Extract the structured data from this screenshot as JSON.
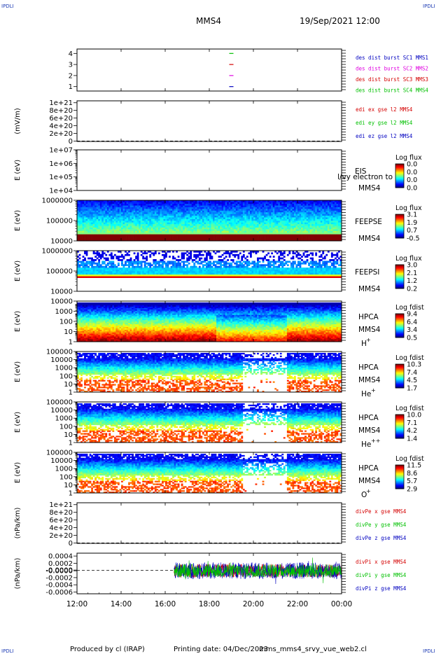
{
  "header": {
    "corner_tl": "IPDLI",
    "corner_tr": "IPDLI",
    "corner_bl": "IPDLI",
    "corner_br": "IPDLI",
    "spacecraft": "MMS4",
    "datetime": "19/Sep/2021 12:00"
  },
  "footer": {
    "produced_by": "Produced by cl (IRAP)",
    "printing_date": "Printing date: 04/Dec/2023",
    "script_name": "mms_mms4_srvy_vue_web2.cl"
  },
  "time_axis": {
    "ticks": [
      "12:00",
      "14:00",
      "16:00",
      "18:00",
      "20:00",
      "22:00",
      "00:00"
    ],
    "start_hour": 12,
    "end_hour": 24
  },
  "colors": {
    "red": "#d40000",
    "magenta": "#e000e0",
    "green": "#00c000",
    "blue": "#0000c0"
  },
  "chart_data": [
    {
      "id": "burst",
      "type": "scatter",
      "yticks": [
        "4",
        "3",
        "2",
        "1"
      ],
      "yvalues": [
        4,
        3,
        2,
        1
      ],
      "ylim": [
        0.6,
        4.4
      ],
      "series": [
        {
          "name": "des dist burst SC1 MMS1",
          "color": "#0000c0",
          "x": [
            19.0
          ],
          "y": [
            1
          ]
        },
        {
          "name": "des dist burst SC2 MMS2",
          "color": "#e000e0",
          "x": [
            19.0
          ],
          "y": [
            2
          ]
        },
        {
          "name": "des dist burst SC3 MMS3",
          "color": "#d40000",
          "x": [
            19.0
          ],
          "y": [
            3
          ]
        },
        {
          "name": "des dist burst SC4 MMS4",
          "color": "#00c000",
          "x": [
            19.0
          ],
          "y": [
            4
          ]
        }
      ]
    },
    {
      "id": "edi",
      "type": "line",
      "ylabel": "(mV/m)",
      "yticks": [
        "1e+21",
        "8e+20",
        "6e+20",
        "4e+20",
        "2e+20",
        "0"
      ],
      "yvalues": [
        1e+21,
        8e+20,
        6e+20,
        4e+20,
        2e+20,
        0
      ],
      "ylim": [
        -1e+19,
        1.05e+21
      ],
      "zero_line": true,
      "series": [
        {
          "name": "edi ex gse l2 MMS4",
          "color": "#d40000"
        },
        {
          "name": "edi ey gse l2 MMS4",
          "color": "#00c000"
        },
        {
          "name": "edi ez gse l2 MMS4",
          "color": "#0000c0"
        }
      ]
    },
    {
      "id": "eis",
      "type": "heatmap",
      "ylabel": "E (eV)",
      "yticks": [
        "1e+07",
        "1e+06",
        "1e+05",
        "1e+04"
      ],
      "ylog": [
        4,
        7
      ],
      "instrument": "EIS",
      "spacecraft": "MMS4",
      "overlay_text": "l/vy electron to",
      "colorbar_title": "Log flux",
      "colorbar_ticks": [
        "0.0",
        "0.0",
        "0.0",
        "0.0"
      ],
      "data": "empty"
    },
    {
      "id": "feepse",
      "type": "heatmap",
      "ylabel": "E (eV)",
      "yticks": [
        "1000000",
        "100000",
        "10000"
      ],
      "ylog": [
        4,
        6
      ],
      "instrument": "FEEPSE",
      "spacecraft": "MMS4",
      "colorbar_title": "Log flux",
      "colorbar_ticks": [
        "3.1",
        "1.9",
        "0.7",
        "-0.5"
      ],
      "data_start_hour": 12.0,
      "data_end_hour": 24.0,
      "pattern": "feeps_e"
    },
    {
      "id": "feepsi",
      "type": "heatmap",
      "ylabel": "E (eV)",
      "yticks": [
        "1000000",
        "100000",
        "10000"
      ],
      "ylog": [
        4,
        6
      ],
      "instrument": "FEEPSI",
      "spacecraft": "MMS4",
      "colorbar_title": "Log flux",
      "colorbar_ticks": [
        "3.0",
        "2.1",
        "1.2",
        "0.2"
      ],
      "data_start_hour": 12.0,
      "data_end_hour": 24.0,
      "pattern": "feeps_i"
    },
    {
      "id": "hpca_h",
      "type": "heatmap",
      "ylabel": "E (eV)",
      "yticks": [
        "10000",
        "1000",
        "100",
        "10",
        "1"
      ],
      "ylog": [
        0,
        4.3
      ],
      "instrument": "HPCA",
      "spacecraft": "MMS4",
      "species": "H",
      "species_sup": "+",
      "colorbar_title": "Log fdist",
      "colorbar_ticks": [
        "9.4",
        "6.4",
        "3.4",
        "0.5"
      ],
      "data_start_hour": 12.0,
      "data_end_hour": 24.0,
      "pattern": "hpca_h"
    },
    {
      "id": "hpca_he",
      "type": "heatmap",
      "ylabel": "E (eV)",
      "yticks": [
        "100000",
        "10000",
        "1000",
        "100",
        "10",
        "1"
      ],
      "ylog": [
        0,
        5
      ],
      "instrument": "HPCA",
      "spacecraft": "MMS4",
      "species": "He",
      "species_sup": "+",
      "colorbar_title": "Log fdist",
      "colorbar_ticks": [
        "10.3",
        "7.4",
        "4.5",
        "1.7"
      ],
      "data_start_hour": 12.0,
      "data_end_hour": 24.0,
      "pattern": "hpca_he"
    },
    {
      "id": "hpca_hepp",
      "type": "heatmap",
      "ylabel": "E (eV)",
      "yticks": [
        "100000",
        "10000",
        "1000",
        "100",
        "10",
        "1"
      ],
      "ylog": [
        0,
        5
      ],
      "instrument": "HPCA",
      "spacecraft": "MMS4",
      "species": "He",
      "species_sup": "++",
      "colorbar_title": "Log fdist",
      "colorbar_ticks": [
        "10.0",
        "7.1",
        "4.2",
        "1.4"
      ],
      "data_start_hour": 12.0,
      "data_end_hour": 24.0,
      "pattern": "hpca_hepp"
    },
    {
      "id": "hpca_o",
      "type": "heatmap",
      "ylabel": "E (eV)",
      "yticks": [
        "100000",
        "10000",
        "1000",
        "100",
        "10",
        "1"
      ],
      "ylog": [
        0,
        5
      ],
      "instrument": "HPCA",
      "spacecraft": "MMS4",
      "species": "O",
      "species_sup": "+",
      "colorbar_title": "Log fdist",
      "colorbar_ticks": [
        "11.5",
        "8.6",
        "5.7",
        "2.9"
      ],
      "data_start_hour": 12.0,
      "data_end_hour": 24.0,
      "pattern": "hpca_o"
    },
    {
      "id": "divpe",
      "type": "line",
      "ylabel": "(nPa/km)",
      "yticks": [
        "1e+21",
        "8e+20",
        "6e+20",
        "4e+20",
        "2e+20",
        "0"
      ],
      "yvalues": [
        1e+21,
        8e+20,
        6e+20,
        4e+20,
        2e+20,
        0
      ],
      "ylim": [
        -1e+19,
        1.05e+21
      ],
      "zero_line": true,
      "series": [
        {
          "name": "divPe x gse MMS4",
          "color": "#d40000"
        },
        {
          "name": "divPe y gse MMS4",
          "color": "#00c000"
        },
        {
          "name": "divPe z gse MMS4",
          "color": "#0000c0"
        }
      ]
    },
    {
      "id": "divpi",
      "type": "line",
      "ylabel": "(nPa/km)",
      "yticks": [
        "0.0004",
        "0.0002",
        "-0.0000",
        "-0.0000",
        "-0.0002",
        "-0.0004",
        "-0.0006"
      ],
      "yvalues": [
        0.0004,
        0.0002,
        1e-05,
        -1e-05,
        -0.0002,
        -0.0004,
        -0.0006
      ],
      "ylim": [
        -0.00065,
        0.00048
      ],
      "zero_line": true,
      "data_start_hour": 16.4,
      "series": [
        {
          "name": "divPi x gse MMS4",
          "color": "#d40000"
        },
        {
          "name": "divPi y gse MMS4",
          "color": "#00c000"
        },
        {
          "name": "divPi z gse MMS4",
          "color": "#0000c0"
        }
      ]
    }
  ]
}
